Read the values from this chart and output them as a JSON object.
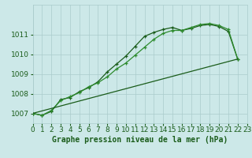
{
  "title": "Graphe pression niveau de la mer (hPa)",
  "bg_color": "#cce8e8",
  "grid_color": "#aacccc",
  "line_color_dark": "#1a5c1a",
  "line_color_med": "#2d8b2d",
  "x_min": 0,
  "x_max": 23,
  "y_min": 1006.5,
  "y_max": 1012.5,
  "yticks": [
    1007,
    1008,
    1009,
    1010,
    1011
  ],
  "xticks": [
    0,
    1,
    2,
    3,
    4,
    5,
    6,
    7,
    8,
    9,
    10,
    11,
    12,
    13,
    14,
    15,
    16,
    17,
    18,
    19,
    20,
    21,
    22,
    23
  ],
  "series_curved1": [
    [
      0,
      1007.0
    ],
    [
      1,
      1006.9
    ],
    [
      2,
      1007.1
    ],
    [
      3,
      1007.7
    ],
    [
      4,
      1007.8
    ],
    [
      5,
      1008.1
    ],
    [
      6,
      1008.3
    ],
    [
      7,
      1008.6
    ],
    [
      8,
      1009.1
    ],
    [
      9,
      1009.5
    ],
    [
      10,
      1009.9
    ],
    [
      11,
      1010.4
    ],
    [
      12,
      1010.9
    ],
    [
      13,
      1011.1
    ],
    [
      14,
      1011.25
    ],
    [
      15,
      1011.35
    ],
    [
      16,
      1011.2
    ],
    [
      17,
      1011.3
    ],
    [
      18,
      1011.45
    ],
    [
      19,
      1011.5
    ],
    [
      20,
      1011.4
    ],
    [
      21,
      1011.15
    ],
    [
      22,
      1009.75
    ]
  ],
  "series_curved2": [
    [
      0,
      1007.0
    ],
    [
      1,
      1006.9
    ],
    [
      2,
      1007.15
    ],
    [
      3,
      1007.65
    ],
    [
      4,
      1007.85
    ],
    [
      5,
      1008.05
    ],
    [
      6,
      1008.35
    ],
    [
      7,
      1008.55
    ],
    [
      8,
      1008.85
    ],
    [
      9,
      1009.25
    ],
    [
      10,
      1009.55
    ],
    [
      11,
      1009.95
    ],
    [
      12,
      1010.35
    ],
    [
      13,
      1010.75
    ],
    [
      14,
      1011.05
    ],
    [
      15,
      1011.2
    ],
    [
      16,
      1011.2
    ],
    [
      17,
      1011.35
    ],
    [
      18,
      1011.5
    ],
    [
      19,
      1011.55
    ],
    [
      20,
      1011.45
    ],
    [
      21,
      1011.25
    ],
    [
      22,
      1009.75
    ]
  ],
  "series_straight": [
    [
      0,
      1007.0
    ],
    [
      22,
      1009.75
    ]
  ],
  "xlabel_fontsize": 6.5,
  "ylabel_fontsize": 6.5,
  "title_fontsize": 7.0
}
